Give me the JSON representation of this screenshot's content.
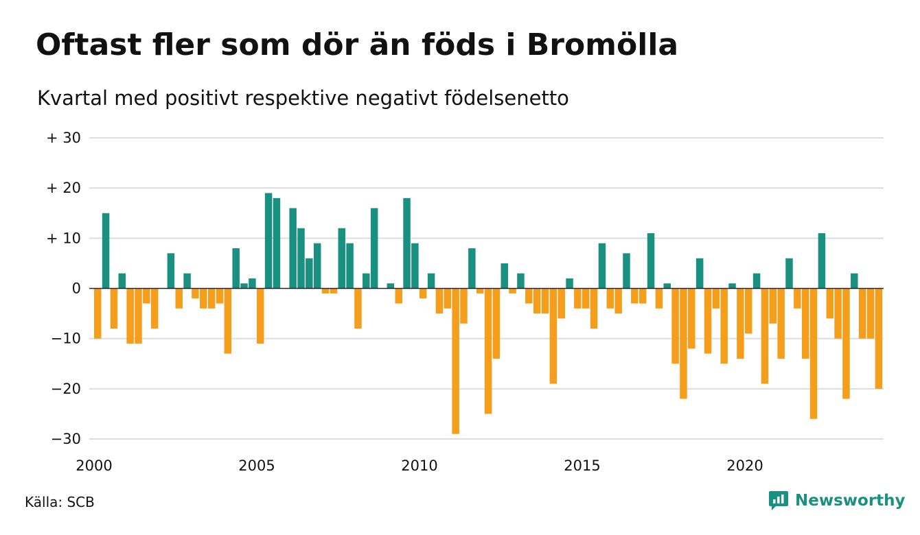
{
  "title": "Oftast fler som dör än föds i Bromölla",
  "subtitle": "Kvartal med positivt respektive negativt födelsenetto",
  "source": "Källa: SCB",
  "brand": {
    "name": "Newsworthy",
    "icon": "newsworthy-logo-icon"
  },
  "colors": {
    "positive": "#1a9080",
    "negative": "#f59e1b",
    "grid": "#dddddd",
    "zero": "#222222"
  },
  "chart_data": {
    "type": "bar",
    "x_start": {
      "year": 2000,
      "quarter": 1
    },
    "period": "quarter",
    "ylim": [
      -30,
      30
    ],
    "yticks": [
      30,
      20,
      10,
      0,
      -10,
      -20,
      -30
    ],
    "ytick_labels": [
      "+ 30",
      "+ 20",
      "+ 10",
      "0",
      "−10",
      "−20",
      "−30"
    ],
    "xticks": [
      2000,
      2005,
      2010,
      2015,
      2020
    ],
    "xtick_labels": [
      "2000",
      "2005",
      "2010",
      "2015",
      "2020"
    ],
    "grid": true,
    "legend": "none",
    "values": [
      -10,
      15,
      -8,
      3,
      -11,
      -11,
      -3,
      -8,
      0,
      7,
      -4,
      3,
      -2,
      -4,
      -4,
      -3,
      -13,
      8,
      1,
      2,
      -11,
      19,
      18,
      0,
      16,
      12,
      6,
      9,
      -1,
      -1,
      12,
      9,
      -8,
      3,
      16,
      0,
      1,
      -3,
      18,
      9,
      -2,
      3,
      -5,
      -4,
      -29,
      -7,
      8,
      -1,
      -25,
      -14,
      5,
      -1,
      3,
      -3,
      -5,
      -5,
      -19,
      -6,
      2,
      -4,
      -4,
      -8,
      9,
      -4,
      -5,
      7,
      -3,
      -3,
      11,
      -4,
      1,
      -15,
      -22,
      -12,
      6,
      -13,
      -4,
      -15,
      1,
      -14,
      -9,
      3,
      -19,
      -7,
      -14,
      6,
      -4,
      -14,
      -26,
      11,
      -6,
      -10,
      -22,
      3,
      -10,
      -10,
      -20
    ]
  }
}
